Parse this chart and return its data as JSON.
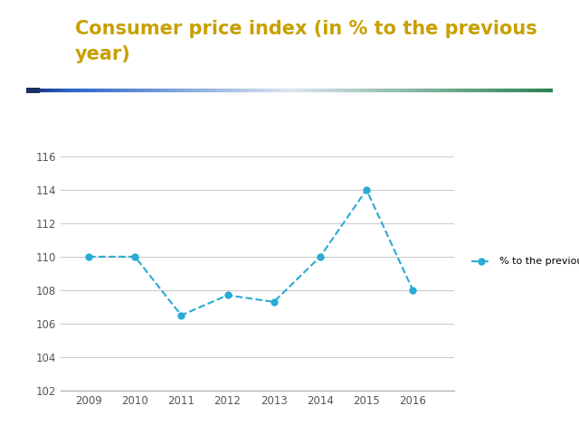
{
  "years": [
    2009,
    2010,
    2011,
    2012,
    2013,
    2014,
    2015,
    2016
  ],
  "values": [
    110.0,
    110.0,
    106.5,
    107.7,
    107.3,
    110.0,
    114.0,
    108.0
  ],
  "line_color": "#29ABD4",
  "marker_color": "#29ABD4",
  "title_line1": "Consumer price index (in % to the previous",
  "title_line2": "year)",
  "title_color": "#C8A000",
  "ylim": [
    102,
    116
  ],
  "yticks": [
    102,
    104,
    106,
    108,
    110,
    112,
    114,
    116
  ],
  "legend_label": "% to the previous year",
  "bg_color": "#FFFFFF",
  "grid_color": "#CCCCCC",
  "axis_color": "#AAAAAA",
  "title_fontsize": 15
}
